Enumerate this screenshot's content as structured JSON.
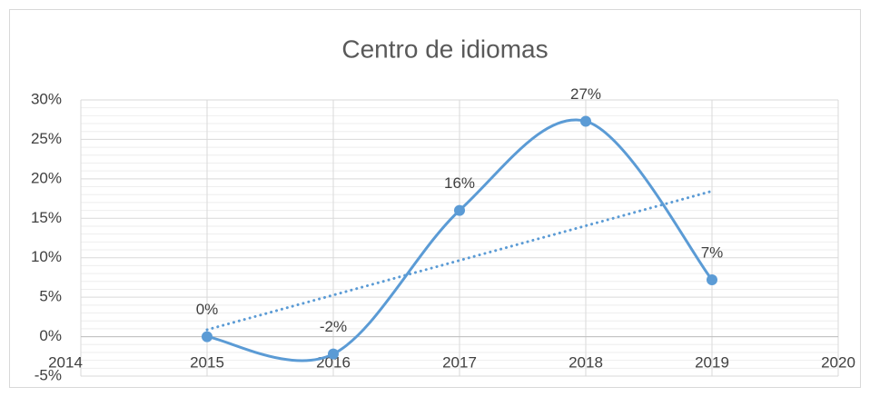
{
  "chart_data": {
    "type": "line",
    "title": "Centro de idiomas",
    "x": [
      2015,
      2016,
      2017,
      2018,
      2019
    ],
    "series": [
      {
        "name": "Centro de idiomas",
        "color": "#5b9bd5",
        "values": [
          0,
          -2.2,
          16,
          27.3,
          7.2
        ],
        "value_labels": [
          "0%",
          "-2%",
          "16%",
          "27%",
          "7%"
        ]
      }
    ],
    "smooth": true,
    "markers": true,
    "trendline": "linear",
    "xlim": [
      2014,
      2020
    ],
    "xticks": [
      2014,
      2015,
      2016,
      2017,
      2018,
      2019,
      2020
    ],
    "ylim": [
      -5,
      30
    ],
    "yticks": [
      {
        "value": -5,
        "label": "-5%"
      },
      {
        "value": 0,
        "label": "0%"
      },
      {
        "value": 5,
        "label": "5%"
      },
      {
        "value": 10,
        "label": "10%"
      },
      {
        "value": 15,
        "label": "15%"
      },
      {
        "value": 20,
        "label": "20%"
      },
      {
        "value": 25,
        "label": "25%"
      },
      {
        "value": 30,
        "label": "30%"
      }
    ],
    "grid": true,
    "minor_grid": true
  }
}
